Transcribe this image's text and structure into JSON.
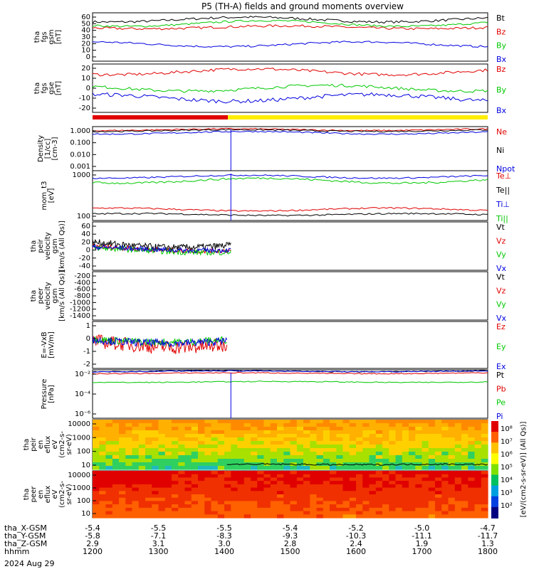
{
  "title": "P5 (TH-A) fields and ground moments overview",
  "date_label": "2024 Aug 29",
  "orbit_rows": [
    {
      "label": "tha_X-GSM",
      "values": [
        "-5.4",
        "-5.5",
        "-5.5",
        "-5.4",
        "-5.2",
        "-5.0",
        "-4.7"
      ]
    },
    {
      "label": "tha_Y-GSM",
      "values": [
        "-5.8",
        "-7.1",
        "-8.3",
        "-9.3",
        "-10.3",
        "-11.1",
        "-11.7"
      ]
    },
    {
      "label": "tha_Z-GSM",
      "values": [
        "2.9",
        "3.1",
        "3.0",
        "2.8",
        "2.4",
        "1.9",
        "1.3"
      ]
    },
    {
      "label": "hhmm",
      "values": [
        "1200",
        "1300",
        "1400",
        "1500",
        "1600",
        "1700",
        "1800"
      ]
    }
  ],
  "colorbar_label": "[eV/(cm2-s-sr-eV)] (All Qs)]",
  "colorbar_ticks": [
    "10⁸",
    "10⁷",
    "10⁶",
    "10⁵",
    "10⁴",
    "10³",
    "10²"
  ],
  "chart_data": [
    {
      "type": "line",
      "ylabel": [
        "tha",
        "fgs",
        "gsm",
        "[nT]"
      ],
      "ylim": [
        -5,
        60
      ],
      "ticks": [
        "60",
        "50",
        "40",
        "30",
        "20",
        "10",
        "0"
      ],
      "series": [
        {
          "name": "Bt",
          "color": "#000000"
        },
        {
          "name": "Bz",
          "color": "#e00000"
        },
        {
          "name": "By",
          "color": "#00c800"
        },
        {
          "name": "Bx",
          "color": "#0000e0"
        }
      ]
    },
    {
      "type": "line",
      "ylabel": [
        "tha",
        "fgs",
        "gse",
        "[nT]"
      ],
      "ylim": [
        -25,
        20
      ],
      "ticks": [
        "20",
        "10",
        "0",
        "-10",
        "-20"
      ],
      "series": [
        {
          "name": "Bz",
          "color": "#e00000"
        },
        {
          "name": "By",
          "color": "#00c800"
        },
        {
          "name": "Bx",
          "color": "#0000e0"
        }
      ]
    },
    {
      "type": "line",
      "ylabel": [
        "Density",
        "[1/cc]",
        "[cm-3]"
      ],
      "log": true,
      "ylim": [
        0.0005,
        5
      ],
      "ticks": [
        "1.000",
        "0.100",
        "0.010",
        "0.001"
      ],
      "series": [
        {
          "name": "Ne",
          "color": "#e00000"
        },
        {
          "name": "Ni",
          "color": "#000000"
        },
        {
          "name": "Npot",
          "color": "#0000e0"
        }
      ]
    },
    {
      "type": "line",
      "ylabel": [
        "mom_t3",
        "[eV]"
      ],
      "log": true,
      "ylim": [
        80,
        6000
      ],
      "ticks": [
        "1000",
        "100"
      ],
      "series": [
        {
          "name": "Te⊥",
          "color": "#e00000"
        },
        {
          "name": "Te||",
          "color": "#000000"
        },
        {
          "name": "Ti⊥",
          "color": "#0000e0"
        },
        {
          "name": "Ti||",
          "color": "#00c800"
        }
      ]
    },
    {
      "type": "line",
      "ylabel": [
        "tha",
        "peir",
        "velocity",
        "gsm",
        "[km/s (All Qs)]"
      ],
      "ylim": [
        -40,
        60
      ],
      "ticks": [
        "60",
        "40",
        "20",
        "0",
        "-20",
        "-40"
      ],
      "series": [
        {
          "name": "Vt",
          "color": "#000000"
        },
        {
          "name": "Vz",
          "color": "#e00000"
        },
        {
          "name": "Vy",
          "color": "#00c800"
        },
        {
          "name": "Vx",
          "color": "#0000e0"
        }
      ]
    },
    {
      "type": "line",
      "ylabel": [
        "tha",
        "peer",
        "velocity",
        "gsm",
        "[km/s (All Qs)]"
      ],
      "ylim": [
        -1400,
        0
      ],
      "ticks": [
        "-200",
        "-400",
        "-600",
        "-800",
        "-1000",
        "-1200",
        "-1400"
      ],
      "series": [
        {
          "name": "Vt",
          "color": "#000000"
        },
        {
          "name": "Vz",
          "color": "#e00000"
        },
        {
          "name": "Vy",
          "color": "#00c800"
        },
        {
          "name": "Vx",
          "color": "#0000e0"
        }
      ]
    },
    {
      "type": "line",
      "ylabel": [
        "E=-VxB",
        "[mV/m]"
      ],
      "ylim": [
        -2,
        2
      ],
      "ticks": [
        "1",
        "0",
        "-1",
        "-2"
      ],
      "series": [
        {
          "name": "Ez",
          "color": "#e00000"
        },
        {
          "name": "Ey",
          "color": "#00c800"
        },
        {
          "name": "Ex",
          "color": "#0000e0"
        }
      ]
    },
    {
      "type": "line",
      "ylabel": [
        "Pressure",
        "[nPa]"
      ],
      "log": true,
      "ylim": [
        1e-06,
        1
      ],
      "ticks": [
        "10⁻²",
        "10⁻⁴",
        "10⁻⁶"
      ],
      "series": [
        {
          "name": "Pt",
          "color": "#000000"
        },
        {
          "name": "Pb",
          "color": "#e00000"
        },
        {
          "name": "Pe",
          "color": "#00c800"
        },
        {
          "name": "Pi",
          "color": "#0000e0"
        }
      ]
    },
    {
      "type": "heatmap",
      "ylabel": [
        "tha",
        "peir",
        "en",
        "eflux",
        "eV",
        "(cm2-s-",
        "sr-eV)"
      ],
      "log": true,
      "ylim": [
        5,
        30000
      ],
      "ticks": [
        "10000",
        "1000",
        "100",
        "10"
      ]
    },
    {
      "type": "heatmap",
      "ylabel": [
        "tha",
        "peer",
        "en",
        "eflux",
        "eV",
        "(cm2-s-",
        "sr-eV)"
      ],
      "log": true,
      "ylim": [
        5,
        30000
      ],
      "ticks": [
        "10000",
        "1000",
        "100",
        "10"
      ]
    }
  ]
}
